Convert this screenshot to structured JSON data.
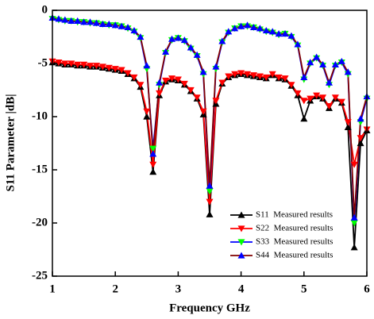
{
  "chart_data": {
    "type": "line",
    "xlabel": "Frequency GHz",
    "ylabel": "S11 Parameter |dB|",
    "x": [
      1.0,
      1.1,
      1.2,
      1.3,
      1.4,
      1.5,
      1.6,
      1.7,
      1.8,
      1.9,
      2.0,
      2.1,
      2.2,
      2.3,
      2.4,
      2.5,
      2.6,
      2.7,
      2.8,
      2.9,
      3.0,
      3.1,
      3.2,
      3.3,
      3.4,
      3.5,
      3.6,
      3.7,
      3.8,
      3.9,
      4.0,
      4.1,
      4.2,
      4.3,
      4.4,
      4.5,
      4.6,
      4.7,
      4.8,
      4.9,
      5.0,
      5.1,
      5.2,
      5.3,
      5.4,
      5.5,
      5.6,
      5.7,
      5.8,
      5.9,
      6.0
    ],
    "xlim": [
      1,
      6
    ],
    "xticks": [
      1,
      2,
      3,
      4,
      5,
      6
    ],
    "ylim": [
      -25,
      0
    ],
    "yticks": [
      0,
      -5,
      -10,
      -15,
      -20,
      -25
    ],
    "legend": "lower right",
    "series": [
      {
        "name": "S11  Measured results",
        "color": "#000000",
        "marker_color": "#000000",
        "marker": "up",
        "values": [
          -4.9,
          -5.0,
          -5.1,
          -5.1,
          -5.2,
          -5.2,
          -5.3,
          -5.3,
          -5.4,
          -5.5,
          -5.6,
          -5.7,
          -6.0,
          -6.4,
          -7.2,
          -10.0,
          -15.2,
          -8.0,
          -6.7,
          -6.5,
          -6.6,
          -7.0,
          -7.6,
          -8.3,
          -9.8,
          -19.2,
          -8.8,
          -6.9,
          -6.3,
          -6.1,
          -6.0,
          -6.1,
          -6.2,
          -6.3,
          -6.4,
          -6.1,
          -6.4,
          -6.5,
          -7.1,
          -8.0,
          -10.2,
          -8.5,
          -8.1,
          -8.3,
          -9.2,
          -8.3,
          -8.7,
          -11.0,
          -22.3,
          -12.5,
          -11.3
        ]
      },
      {
        "name": "S22  Measured results",
        "color": "#ff0000",
        "marker_color": "#ff0000",
        "marker": "down",
        "values": [
          -4.8,
          -4.9,
          -5.0,
          -5.0,
          -5.1,
          -5.1,
          -5.2,
          -5.2,
          -5.3,
          -5.4,
          -5.5,
          -5.6,
          -5.9,
          -6.3,
          -7.0,
          -9.5,
          -14.5,
          -7.8,
          -6.6,
          -6.4,
          -6.5,
          -6.9,
          -7.5,
          -8.2,
          -9.5,
          -18.0,
          -8.5,
          -6.8,
          -6.2,
          -6.0,
          -5.9,
          -6.0,
          -6.1,
          -6.2,
          -6.3,
          -6.0,
          -6.3,
          -6.4,
          -7.0,
          -7.8,
          -8.5,
          -8.3,
          -8.0,
          -8.2,
          -9.0,
          -8.2,
          -8.6,
          -10.5,
          -14.5,
          -12.0,
          -11.2
        ]
      },
      {
        "name": "S33  Measured results",
        "color": "#0000ff",
        "marker_color": "#00ff00",
        "marker": "down",
        "values": [
          -0.8,
          -0.9,
          -1.0,
          -1.0,
          -1.1,
          -1.1,
          -1.2,
          -1.2,
          -1.3,
          -1.4,
          -1.4,
          -1.5,
          -1.7,
          -2.0,
          -2.6,
          -5.5,
          -13.0,
          -7.0,
          -4.0,
          -2.8,
          -2.6,
          -2.9,
          -3.6,
          -4.3,
          -6.0,
          -17.0,
          -5.5,
          -3.0,
          -2.1,
          -1.7,
          -1.5,
          -1.5,
          -1.6,
          -1.8,
          -2.0,
          -2.1,
          -2.3,
          -2.2,
          -2.5,
          -3.3,
          -6.5,
          -5.0,
          -4.5,
          -5.2,
          -7.0,
          -5.2,
          -4.9,
          -6.0,
          -20.0,
          -10.5,
          -8.3
        ]
      },
      {
        "name": "S44  Measured results",
        "color": "#800000",
        "marker_color": "#0000ff",
        "marker": "up",
        "values": [
          -0.7,
          -0.8,
          -0.9,
          -1.0,
          -1.0,
          -1.1,
          -1.1,
          -1.2,
          -1.3,
          -1.3,
          -1.4,
          -1.5,
          -1.6,
          -1.9,
          -2.5,
          -5.2,
          -13.5,
          -6.8,
          -3.9,
          -2.7,
          -2.6,
          -2.8,
          -3.5,
          -4.2,
          -5.8,
          -16.5,
          -5.3,
          -2.9,
          -2.0,
          -1.7,
          -1.5,
          -1.4,
          -1.6,
          -1.7,
          -1.9,
          -2.0,
          -2.2,
          -2.2,
          -2.4,
          -3.2,
          -6.3,
          -4.9,
          -4.4,
          -5.1,
          -6.8,
          -5.1,
          -4.8,
          -5.8,
          -19.5,
          -10.2,
          -8.1
        ]
      }
    ]
  }
}
